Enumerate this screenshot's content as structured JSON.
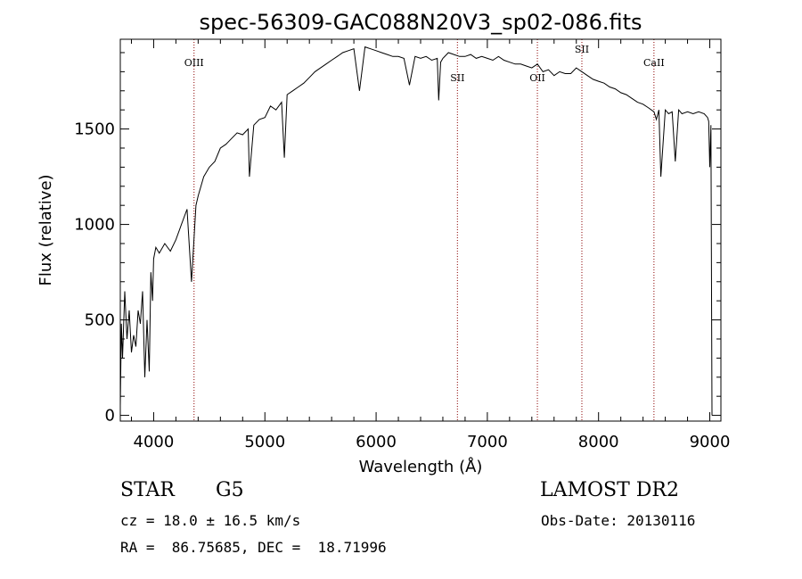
{
  "chart_data": {
    "type": "line",
    "title": "spec-56309-GAC088N20V3_sp02-086.fits",
    "xlabel": "Wavelength (Å)",
    "ylabel": "Flux (relative)",
    "xlim": [
      3700,
      9100
    ],
    "ylim": [
      -30,
      1970
    ],
    "x_ticks": [
      4000,
      5000,
      6000,
      7000,
      8000,
      9000
    ],
    "y_ticks": [
      0,
      500,
      1000,
      1500
    ],
    "grid": false,
    "series": [
      {
        "color": "#000000",
        "x": [
          3700,
          3710,
          3720,
          3740,
          3760,
          3780,
          3800,
          3820,
          3840,
          3860,
          3880,
          3900,
          3920,
          3940,
          3960,
          3975,
          3990,
          4000,
          4020,
          4050,
          4100,
          4150,
          4200,
          4250,
          4300,
          4340,
          4380,
          4400,
          4450,
          4500,
          4550,
          4600,
          4650,
          4700,
          4750,
          4800,
          4850,
          4861,
          4900,
          4950,
          5000,
          5050,
          5100,
          5150,
          5175,
          5200,
          5250,
          5300,
          5350,
          5400,
          5450,
          5500,
          5550,
          5600,
          5650,
          5700,
          5750,
          5800,
          5850,
          5900,
          5950,
          6000,
          6050,
          6100,
          6150,
          6200,
          6250,
          6300,
          6350,
          6400,
          6450,
          6500,
          6550,
          6563,
          6580,
          6600,
          6650,
          6700,
          6750,
          6800,
          6850,
          6900,
          6950,
          7000,
          7050,
          7100,
          7150,
          7200,
          7250,
          7300,
          7350,
          7400,
          7450,
          7500,
          7550,
          7600,
          7650,
          7700,
          7750,
          7800,
          7850,
          7900,
          7950,
          8000,
          8050,
          8100,
          8150,
          8200,
          8250,
          8300,
          8350,
          8400,
          8450,
          8498,
          8520,
          8542,
          8560,
          8600,
          8630,
          8662,
          8690,
          8720,
          8750,
          8800,
          8850,
          8900,
          8950,
          8980,
          8990,
          9000,
          9010,
          9020
        ],
        "y": [
          50,
          480,
          300,
          650,
          400,
          550,
          330,
          420,
          360,
          550,
          480,
          650,
          200,
          500,
          230,
          750,
          600,
          820,
          880,
          850,
          900,
          860,
          920,
          1000,
          1080,
          700,
          1100,
          1150,
          1250,
          1300,
          1330,
          1400,
          1420,
          1450,
          1480,
          1470,
          1500,
          1250,
          1520,
          1550,
          1560,
          1620,
          1600,
          1640,
          1350,
          1680,
          1700,
          1720,
          1740,
          1770,
          1800,
          1820,
          1840,
          1860,
          1880,
          1900,
          1910,
          1920,
          1700,
          1930,
          1920,
          1910,
          1900,
          1890,
          1880,
          1880,
          1870,
          1730,
          1880,
          1870,
          1880,
          1860,
          1870,
          1650,
          1850,
          1870,
          1900,
          1890,
          1880,
          1880,
          1890,
          1870,
          1880,
          1870,
          1860,
          1880,
          1860,
          1850,
          1840,
          1840,
          1830,
          1820,
          1840,
          1800,
          1810,
          1780,
          1800,
          1790,
          1790,
          1820,
          1800,
          1780,
          1760,
          1750,
          1740,
          1720,
          1710,
          1690,
          1680,
          1660,
          1640,
          1630,
          1610,
          1590,
          1550,
          1600,
          1250,
          1600,
          1580,
          1590,
          1330,
          1600,
          1580,
          1590,
          1580,
          1590,
          1580,
          1560,
          1540,
          1300,
          1520,
          0
        ]
      }
    ],
    "annotations": [
      {
        "label": "OIII",
        "x": 4363,
        "label_y": 1830
      },
      {
        "label": "SII",
        "x": 6731,
        "label_y": 1750
      },
      {
        "label": "OII",
        "x": 7450,
        "label_y": 1750
      },
      {
        "label": "SII",
        "x": 7850,
        "label_y": 1900
      },
      {
        "label": "CaII",
        "x": 8498,
        "label_y": 1830
      }
    ],
    "annotation_color": "#8b0000"
  },
  "footer": {
    "object_type": "STAR",
    "subclass": "G5",
    "survey": "LAMOST DR2",
    "cz": "cz = 18.0 ± 16.5 km/s",
    "obs_date": "Obs-Date: 20130116",
    "coords": "RA =  86.75685, DEC =  18.71996"
  }
}
